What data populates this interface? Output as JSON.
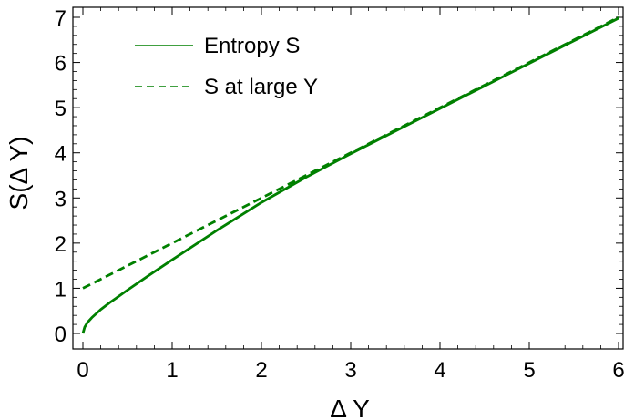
{
  "chart_data": {
    "type": "line",
    "xlabel": "Δ Y",
    "ylabel": "S(Δ Y)",
    "xlim": [
      0,
      6
    ],
    "ylim": [
      0,
      7
    ],
    "x_ticks": [
      "0",
      "1",
      "2",
      "3",
      "4",
      "5",
      "6"
    ],
    "y_ticks": [
      "0",
      "1",
      "2",
      "3",
      "4",
      "5",
      "6",
      "7"
    ],
    "grid": false,
    "legend_position": "top-left",
    "series": [
      {
        "name": "Entropy S",
        "style": "solid",
        "color": "#008000",
        "x": [
          0,
          0.02,
          0.05,
          0.1,
          0.2,
          0.3,
          0.5,
          0.75,
          1,
          1.5,
          2,
          2.5,
          3,
          3.5,
          4,
          4.5,
          5,
          5.5,
          6
        ],
        "y": [
          0,
          0.14,
          0.24,
          0.35,
          0.53,
          0.68,
          0.96,
          1.3,
          1.63,
          2.28,
          2.9,
          3.46,
          3.98,
          4.48,
          4.98,
          5.48,
          5.98,
          6.48,
          6.98
        ]
      },
      {
        "name": "S at large Y",
        "style": "dashed",
        "color": "#008000",
        "x": [
          0,
          6
        ],
        "y": [
          1,
          7
        ]
      }
    ]
  }
}
